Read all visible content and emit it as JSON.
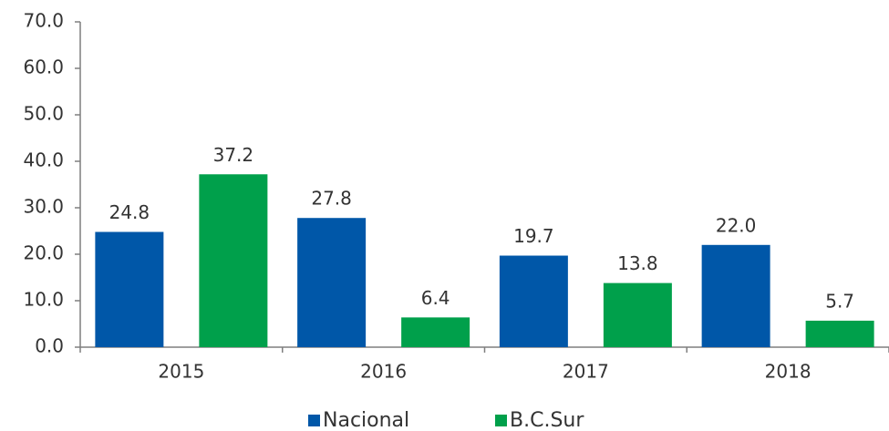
{
  "chart_data": {
    "type": "bar",
    "categories": [
      "2015",
      "2016",
      "2017",
      "2018"
    ],
    "series": [
      {
        "name": "Nacional",
        "color": "#0057a8",
        "values": [
          24.8,
          27.8,
          19.7,
          22.0
        ],
        "value_labels": [
          "24.8",
          "27.8",
          "19.7",
          "22.0"
        ]
      },
      {
        "name": "B.C.Sur",
        "color": "#00a04b",
        "values": [
          37.2,
          6.4,
          13.8,
          5.7
        ],
        "value_labels": [
          "37.2",
          "6.4",
          "13.8",
          "5.7"
        ]
      }
    ],
    "ylim": [
      0,
      70
    ],
    "yticks": [
      {
        "value": 0,
        "label": "0.0"
      },
      {
        "value": 10,
        "label": "10.0"
      },
      {
        "value": 20,
        "label": "20.0"
      },
      {
        "value": 30,
        "label": "30.0"
      },
      {
        "value": 40,
        "label": "40.0"
      },
      {
        "value": 50,
        "label": "50.0"
      },
      {
        "value": 60,
        "label": "60.0"
      },
      {
        "value": 70,
        "label": "70.0"
      }
    ],
    "grid": false,
    "legend": "bottom"
  }
}
